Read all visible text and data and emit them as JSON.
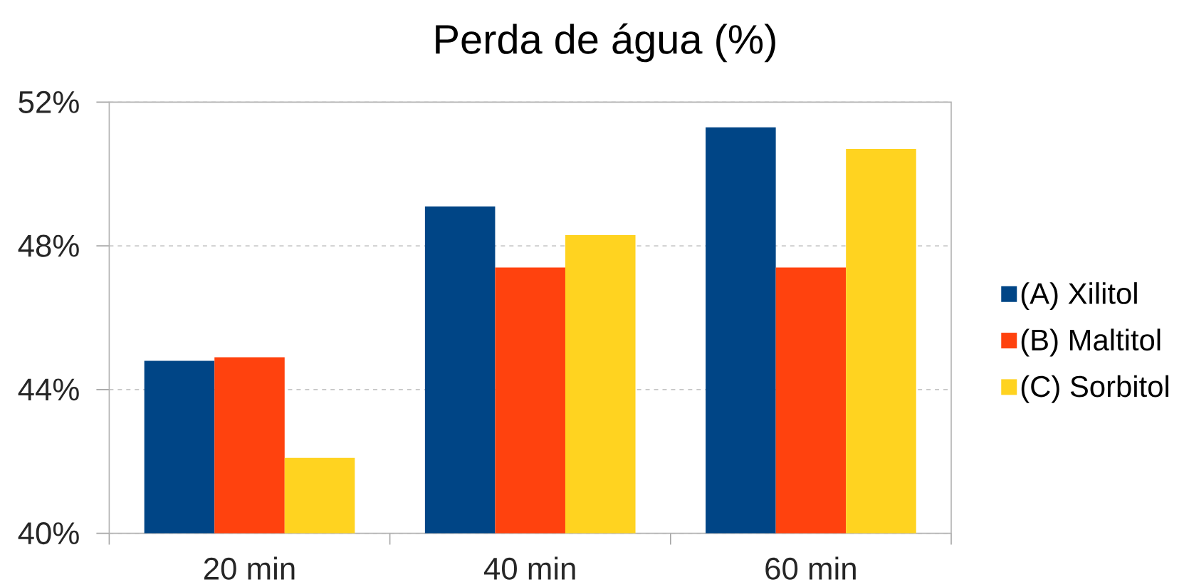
{
  "chart_data": {
    "type": "bar",
    "title": "Perda de água (%)",
    "categories": [
      "20 min",
      "40 min",
      "60 min"
    ],
    "series": [
      {
        "name": "(A) Xilitol",
        "color": "#004586",
        "values": [
          44.8,
          49.1,
          51.3
        ]
      },
      {
        "name": "(B) Maltitol",
        "color": "#ff420e",
        "values": [
          44.9,
          47.4,
          47.4
        ]
      },
      {
        "name": "(C) Sorbitol",
        "color": "#ffd320",
        "values": [
          42.1,
          48.3,
          50.7
        ]
      }
    ],
    "ylim": [
      40,
      52
    ],
    "yticks": [
      {
        "value": 40,
        "label": "40%"
      },
      {
        "value": 44,
        "label": "44%"
      },
      {
        "value": 48,
        "label": "48%"
      },
      {
        "value": 52,
        "label": "52%"
      }
    ],
    "grid": "y",
    "legend": "right"
  }
}
